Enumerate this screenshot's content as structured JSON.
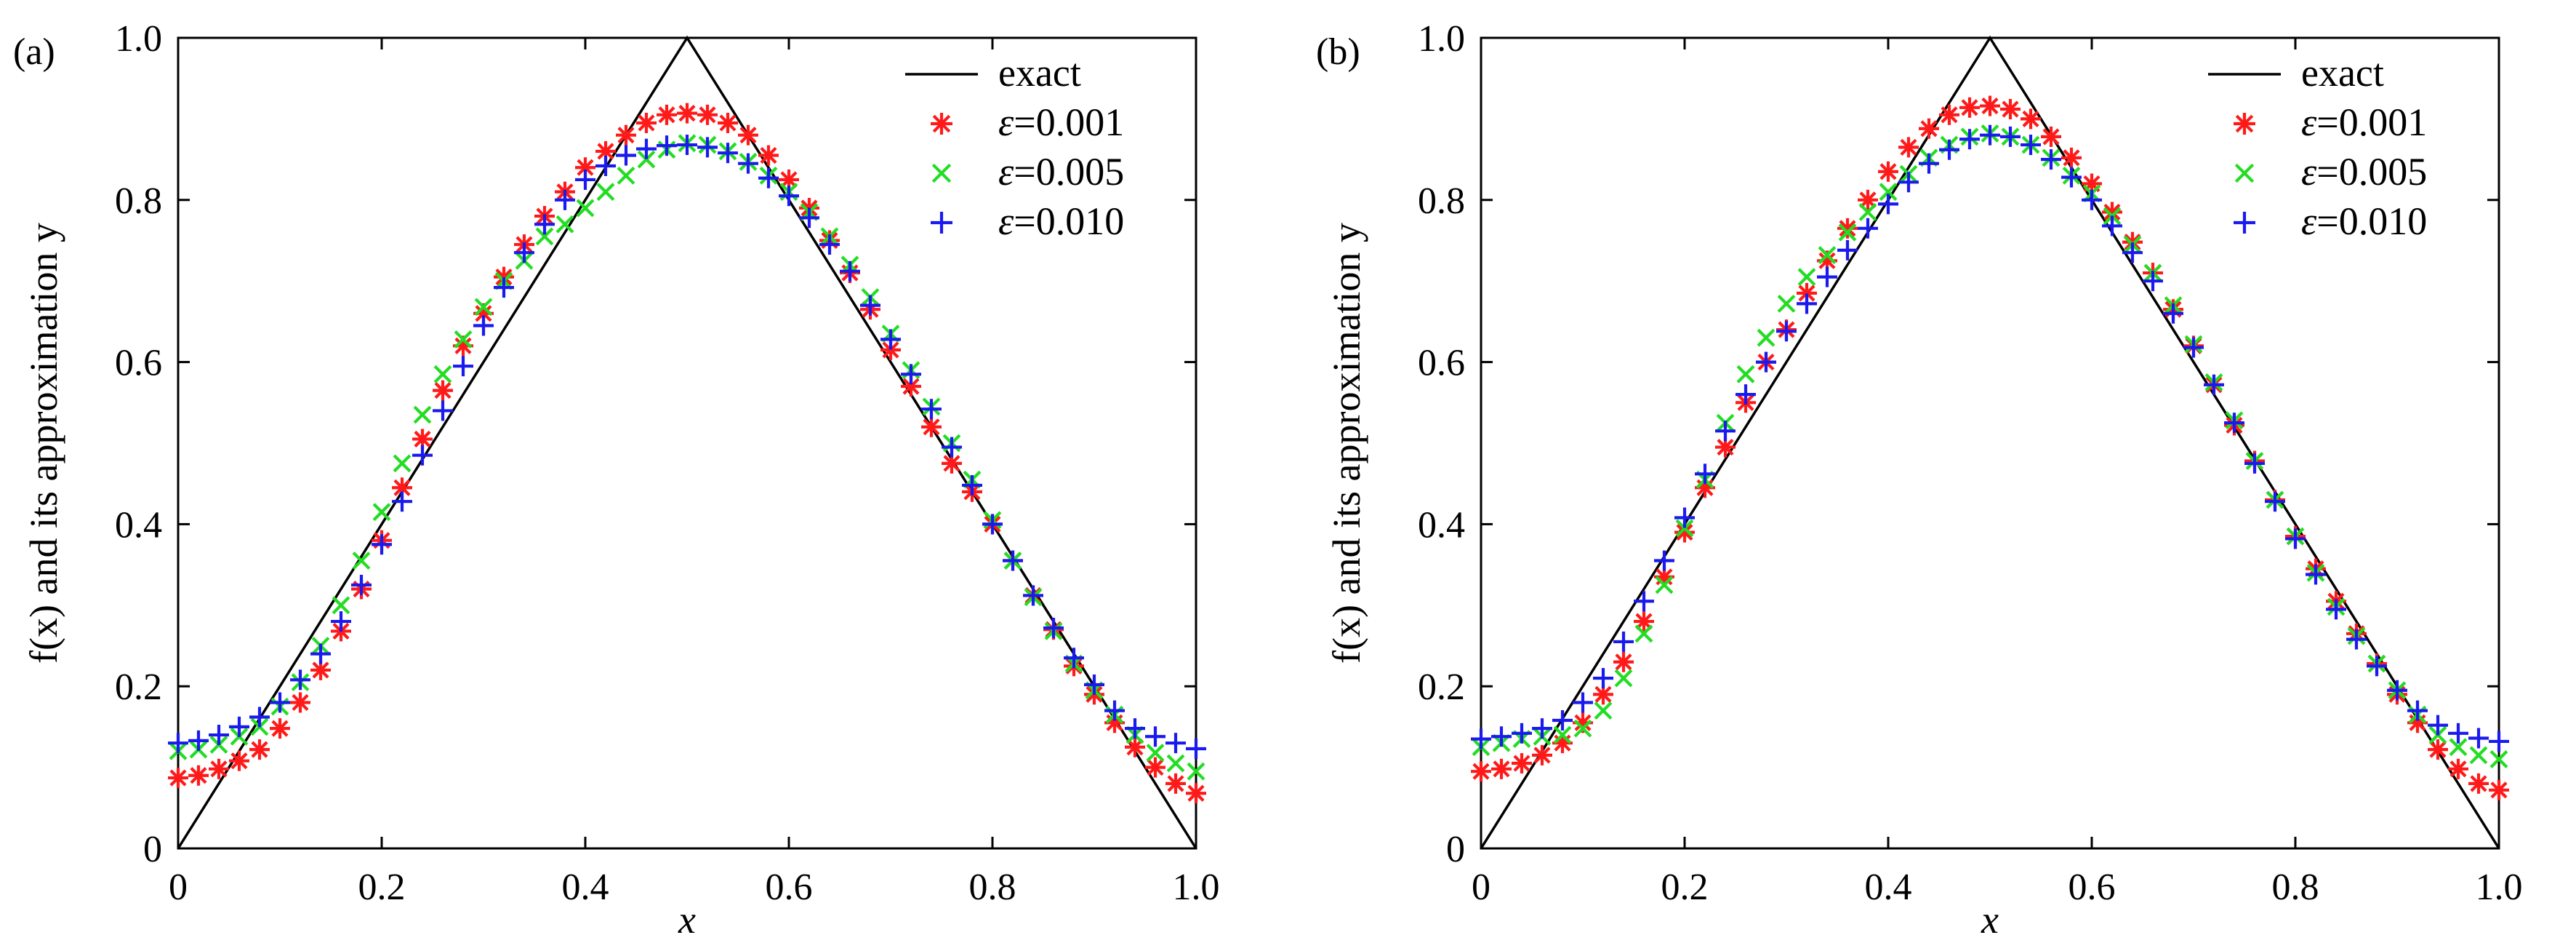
{
  "colors": {
    "exact": "#000000",
    "eps_0001": "#ff1a1a",
    "eps_0005": "#22dd22",
    "eps_0010": "#1a1aee"
  },
  "chart_data": [
    {
      "panel_label": "(a)",
      "type": "scatter",
      "xlabel": "x",
      "ylabel": "f(x) and its approximation y",
      "xlim": [
        0,
        1.0
      ],
      "ylim": [
        0,
        1.0
      ],
      "xticks": [
        "0",
        "0.2",
        "0.4",
        "0.6",
        "0.8",
        "1.0"
      ],
      "yticks": [
        "0",
        "0.2",
        "0.4",
        "0.6",
        "0.8",
        "1.0"
      ],
      "legend_position": "top-right",
      "grid": false,
      "legend": [
        {
          "label": "exact",
          "marker": "line"
        },
        {
          "label_symbol": "ε",
          "label_value": "=0.001",
          "marker": "asterisk"
        },
        {
          "label_symbol": "ε",
          "label_value": "=0.005",
          "marker": "x"
        },
        {
          "label_symbol": "ε",
          "label_value": "=0.010",
          "marker": "plus"
        }
      ],
      "series": [
        {
          "name": "exact",
          "kind": "line",
          "x": [
            0,
            0.5,
            1.0
          ],
          "y": [
            0,
            1.0,
            0
          ]
        },
        {
          "name": "ε=0.001",
          "kind": "asterisk",
          "x": [
            0,
            0.02,
            0.04,
            0.06,
            0.08,
            0.1,
            0.12,
            0.14,
            0.16,
            0.18,
            0.2,
            0.22,
            0.24,
            0.26,
            0.28,
            0.3,
            0.32,
            0.34,
            0.36,
            0.38,
            0.4,
            0.42,
            0.44,
            0.46,
            0.48,
            0.5,
            0.52,
            0.54,
            0.56,
            0.58,
            0.6,
            0.62,
            0.64,
            0.66,
            0.68,
            0.7,
            0.72,
            0.74,
            0.76,
            0.78,
            0.8,
            0.82,
            0.84,
            0.86,
            0.88,
            0.9,
            0.92,
            0.94,
            0.96,
            0.98,
            1.0
          ],
          "y": [
            0.087,
            0.09,
            0.098,
            0.108,
            0.122,
            0.148,
            0.18,
            0.22,
            0.268,
            0.32,
            0.38,
            0.445,
            0.505,
            0.565,
            0.62,
            0.66,
            0.705,
            0.745,
            0.78,
            0.81,
            0.84,
            0.86,
            0.88,
            0.895,
            0.905,
            0.907,
            0.905,
            0.895,
            0.88,
            0.855,
            0.825,
            0.79,
            0.75,
            0.71,
            0.665,
            0.615,
            0.57,
            0.52,
            0.475,
            0.44,
            0.4,
            0.355,
            0.312,
            0.27,
            0.225,
            0.19,
            0.155,
            0.125,
            0.1,
            0.08,
            0.068
          ]
        },
        {
          "name": "ε=0.005",
          "kind": "x",
          "x": [
            0,
            0.02,
            0.04,
            0.06,
            0.08,
            0.1,
            0.12,
            0.14,
            0.16,
            0.18,
            0.2,
            0.22,
            0.24,
            0.26,
            0.28,
            0.3,
            0.32,
            0.34,
            0.36,
            0.38,
            0.4,
            0.42,
            0.44,
            0.46,
            0.48,
            0.5,
            0.52,
            0.54,
            0.56,
            0.58,
            0.6,
            0.62,
            0.64,
            0.66,
            0.68,
            0.7,
            0.72,
            0.74,
            0.76,
            0.78,
            0.8,
            0.82,
            0.84,
            0.86,
            0.88,
            0.9,
            0.92,
            0.94,
            0.96,
            0.98,
            1.0
          ],
          "y": [
            0.12,
            0.122,
            0.128,
            0.138,
            0.15,
            0.175,
            0.205,
            0.25,
            0.3,
            0.355,
            0.415,
            0.475,
            0.535,
            0.585,
            0.628,
            0.668,
            0.7,
            0.725,
            0.755,
            0.77,
            0.79,
            0.81,
            0.83,
            0.85,
            0.862,
            0.87,
            0.868,
            0.86,
            0.847,
            0.83,
            0.81,
            0.785,
            0.755,
            0.72,
            0.68,
            0.635,
            0.59,
            0.545,
            0.5,
            0.455,
            0.405,
            0.355,
            0.31,
            0.268,
            0.228,
            0.195,
            0.165,
            0.14,
            0.118,
            0.105,
            0.095
          ]
        },
        {
          "name": "ε=0.010",
          "kind": "plus",
          "x": [
            0,
            0.02,
            0.04,
            0.06,
            0.08,
            0.1,
            0.12,
            0.14,
            0.16,
            0.18,
            0.2,
            0.22,
            0.24,
            0.26,
            0.28,
            0.3,
            0.32,
            0.34,
            0.36,
            0.38,
            0.4,
            0.42,
            0.44,
            0.46,
            0.48,
            0.5,
            0.52,
            0.54,
            0.56,
            0.58,
            0.6,
            0.62,
            0.64,
            0.66,
            0.68,
            0.7,
            0.72,
            0.74,
            0.76,
            0.78,
            0.8,
            0.82,
            0.84,
            0.86,
            0.88,
            0.9,
            0.92,
            0.94,
            0.96,
            0.98,
            1.0
          ],
          "y": [
            0.13,
            0.133,
            0.14,
            0.15,
            0.162,
            0.18,
            0.208,
            0.24,
            0.28,
            0.325,
            0.375,
            0.428,
            0.485,
            0.54,
            0.595,
            0.645,
            0.692,
            0.735,
            0.77,
            0.8,
            0.825,
            0.842,
            0.855,
            0.863,
            0.867,
            0.868,
            0.865,
            0.858,
            0.845,
            0.827,
            0.805,
            0.778,
            0.745,
            0.712,
            0.67,
            0.628,
            0.585,
            0.542,
            0.495,
            0.448,
            0.4,
            0.355,
            0.312,
            0.272,
            0.235,
            0.202,
            0.17,
            0.148,
            0.138,
            0.13,
            0.123
          ]
        }
      ]
    },
    {
      "panel_label": "(b)",
      "type": "scatter",
      "xlabel": "x",
      "ylabel": "f(x) and its approximation y",
      "xlim": [
        0,
        1.0
      ],
      "ylim": [
        0,
        1.0
      ],
      "xticks": [
        "0",
        "0.2",
        "0.4",
        "0.6",
        "0.8",
        "1.0"
      ],
      "yticks": [
        "0",
        "0.2",
        "0.4",
        "0.6",
        "0.8",
        "1.0"
      ],
      "legend_position": "top-right",
      "grid": false,
      "legend": [
        {
          "label": "exact",
          "marker": "line"
        },
        {
          "label_symbol": "ε",
          "label_value": "=0.001",
          "marker": "asterisk"
        },
        {
          "label_symbol": "ε",
          "label_value": "=0.005",
          "marker": "x"
        },
        {
          "label_symbol": "ε",
          "label_value": "=0.010",
          "marker": "plus"
        }
      ],
      "series": [
        {
          "name": "exact",
          "kind": "line",
          "x": [
            0,
            0.5,
            1.0
          ],
          "y": [
            0,
            1.0,
            0
          ]
        },
        {
          "name": "ε=0.001",
          "kind": "asterisk",
          "x": [
            0,
            0.02,
            0.04,
            0.06,
            0.08,
            0.1,
            0.12,
            0.14,
            0.16,
            0.18,
            0.2,
            0.22,
            0.24,
            0.26,
            0.28,
            0.3,
            0.32,
            0.34,
            0.36,
            0.38,
            0.4,
            0.42,
            0.44,
            0.46,
            0.48,
            0.5,
            0.52,
            0.54,
            0.56,
            0.58,
            0.6,
            0.62,
            0.64,
            0.66,
            0.68,
            0.7,
            0.72,
            0.74,
            0.76,
            0.78,
            0.8,
            0.82,
            0.84,
            0.86,
            0.88,
            0.9,
            0.92,
            0.94,
            0.96,
            0.98,
            1.0
          ],
          "y": [
            0.095,
            0.098,
            0.105,
            0.115,
            0.13,
            0.155,
            0.19,
            0.23,
            0.28,
            0.335,
            0.39,
            0.445,
            0.495,
            0.55,
            0.6,
            0.64,
            0.685,
            0.725,
            0.765,
            0.8,
            0.835,
            0.865,
            0.888,
            0.905,
            0.914,
            0.916,
            0.912,
            0.9,
            0.878,
            0.852,
            0.82,
            0.785,
            0.748,
            0.71,
            0.665,
            0.62,
            0.572,
            0.522,
            0.478,
            0.43,
            0.385,
            0.345,
            0.305,
            0.265,
            0.228,
            0.19,
            0.155,
            0.122,
            0.098,
            0.08,
            0.072
          ]
        },
        {
          "name": "ε=0.005",
          "kind": "x",
          "x": [
            0,
            0.02,
            0.04,
            0.06,
            0.08,
            0.1,
            0.12,
            0.14,
            0.16,
            0.18,
            0.2,
            0.22,
            0.24,
            0.26,
            0.28,
            0.3,
            0.32,
            0.34,
            0.36,
            0.38,
            0.4,
            0.42,
            0.44,
            0.46,
            0.48,
            0.5,
            0.52,
            0.54,
            0.56,
            0.58,
            0.6,
            0.62,
            0.64,
            0.66,
            0.68,
            0.7,
            0.72,
            0.74,
            0.76,
            0.78,
            0.8,
            0.82,
            0.84,
            0.86,
            0.88,
            0.9,
            0.92,
            0.94,
            0.96,
            0.98,
            1.0
          ],
          "y": [
            0.125,
            0.13,
            0.135,
            0.138,
            0.14,
            0.148,
            0.17,
            0.21,
            0.265,
            0.325,
            0.395,
            0.455,
            0.525,
            0.585,
            0.63,
            0.672,
            0.705,
            0.732,
            0.76,
            0.785,
            0.81,
            0.832,
            0.852,
            0.868,
            0.878,
            0.882,
            0.878,
            0.868,
            0.852,
            0.83,
            0.808,
            0.78,
            0.745,
            0.71,
            0.67,
            0.622,
            0.575,
            0.528,
            0.478,
            0.43,
            0.385,
            0.34,
            0.298,
            0.262,
            0.228,
            0.195,
            0.165,
            0.14,
            0.125,
            0.115,
            0.11
          ]
        },
        {
          "name": "ε=0.010",
          "kind": "plus",
          "x": [
            0,
            0.02,
            0.04,
            0.06,
            0.08,
            0.1,
            0.12,
            0.14,
            0.16,
            0.18,
            0.2,
            0.22,
            0.24,
            0.26,
            0.28,
            0.3,
            0.32,
            0.34,
            0.36,
            0.38,
            0.4,
            0.42,
            0.44,
            0.46,
            0.48,
            0.5,
            0.52,
            0.54,
            0.56,
            0.58,
            0.6,
            0.62,
            0.64,
            0.66,
            0.68,
            0.7,
            0.72,
            0.74,
            0.76,
            0.78,
            0.8,
            0.82,
            0.84,
            0.86,
            0.88,
            0.9,
            0.92,
            0.94,
            0.96,
            0.98,
            1.0
          ],
          "y": [
            0.135,
            0.138,
            0.142,
            0.148,
            0.158,
            0.18,
            0.21,
            0.255,
            0.305,
            0.355,
            0.408,
            0.462,
            0.515,
            0.56,
            0.6,
            0.638,
            0.672,
            0.705,
            0.738,
            0.765,
            0.795,
            0.822,
            0.845,
            0.862,
            0.875,
            0.88,
            0.878,
            0.868,
            0.85,
            0.828,
            0.8,
            0.768,
            0.735,
            0.7,
            0.66,
            0.618,
            0.572,
            0.525,
            0.475,
            0.428,
            0.382,
            0.338,
            0.295,
            0.258,
            0.225,
            0.195,
            0.17,
            0.152,
            0.142,
            0.136,
            0.132
          ]
        }
      ]
    }
  ]
}
